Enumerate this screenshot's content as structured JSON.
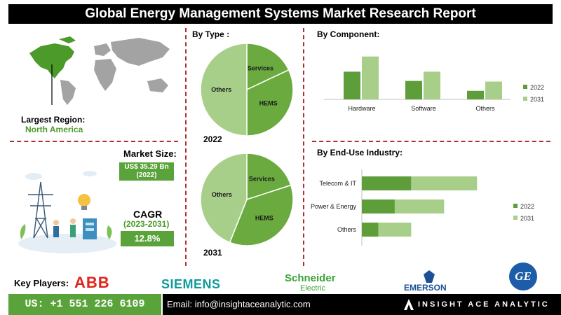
{
  "title": "Global Energy Management Systems Market Research Report",
  "region": {
    "label": "Largest Region:",
    "value": "North America"
  },
  "market_size": {
    "label": "Market Size:",
    "value": "US$ 35.29 Bn",
    "year": "(2022)"
  },
  "cagr": {
    "label": "CAGR",
    "period": "(2023-2031)",
    "value": "12.8%"
  },
  "key_players": {
    "label": "Key Players:",
    "logos": [
      "ABB",
      "SIEMENS",
      "Schneider",
      "Electric",
      "EMERSON",
      "GE"
    ]
  },
  "footer": {
    "phone": "US: +1 551 226 6109",
    "email": "Email: info@insightaceanalytic.com",
    "brand": "INSIGHT ACE ANALYTIC"
  },
  "colors": {
    "dark_green": "#5e9e3a",
    "light_green": "#a8cf8a",
    "mid_green": "#6aaa3f",
    "accent_red": "#b03030"
  },
  "chart_data": [
    {
      "type": "pie",
      "title": "By Type :",
      "caption": "2022",
      "labels": [
        "Services",
        "HEMS",
        "Others"
      ],
      "values": [
        18,
        32,
        50
      ]
    },
    {
      "type": "pie",
      "caption": "2031",
      "labels": [
        "Services",
        "HEMS",
        "Others"
      ],
      "values": [
        20,
        36,
        44
      ]
    },
    {
      "type": "bar",
      "title": "By Component:",
      "categories": [
        "Hardware",
        "Software",
        "Others"
      ],
      "series": [
        {
          "name": "2022",
          "values": [
            42,
            28,
            13
          ]
        },
        {
          "name": "2031",
          "values": [
            65,
            42,
            27
          ]
        }
      ],
      "ylim": [
        0,
        70
      ],
      "legend": "right"
    },
    {
      "type": "bar",
      "orientation": "horizontal",
      "stacked": true,
      "title": "By End-Use Industry:",
      "categories": [
        "Telecom & IT",
        "Power & Energy",
        "Others"
      ],
      "series": [
        {
          "name": "2022",
          "values": [
            60,
            40,
            20
          ]
        },
        {
          "name": "2031",
          "values": [
            80,
            60,
            40
          ]
        }
      ],
      "xlim": [
        0,
        150
      ],
      "legend": "right"
    }
  ]
}
